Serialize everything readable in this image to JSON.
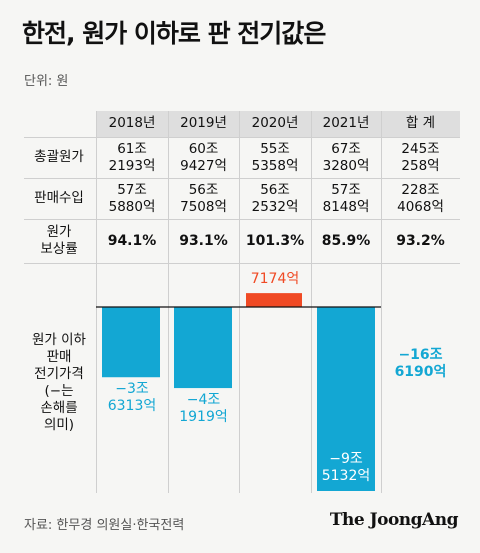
{
  "title": "한전, 원가 이하로 판 전기값은",
  "unit": "단위: 원",
  "header": [
    "2018년",
    "2019년",
    "2020년",
    "2021년",
    "합 계"
  ],
  "rows": [
    {
      "label": "총괄원가",
      "values": [
        [
          "61조",
          "2193억"
        ],
        [
          "60조",
          "9427억"
        ],
        [
          "55조",
          "5358억"
        ],
        [
          "67조",
          "3280억"
        ],
        [
          "245조",
          "258억"
        ]
      ]
    },
    {
      "label": "판매수입",
      "values": [
        [
          "57조",
          "5880억"
        ],
        [
          "56조",
          "7508억"
        ],
        [
          "56조",
          "2532억"
        ],
        [
          "57조",
          "8148억"
        ],
        [
          "228조",
          "4068억"
        ]
      ]
    },
    {
      "label_lines": [
        "원가",
        "보상률"
      ],
      "values": [
        "94.1%",
        "93.1%",
        "101.3%",
        "85.9%",
        "93.2%"
      ]
    }
  ],
  "chart_label_lines": [
    "원가 이하",
    "판매",
    "전기가격",
    "(−는",
    "손해를",
    "의미)"
  ],
  "chart_data": {
    "type": "bar",
    "categories": [
      "2018년",
      "2019년",
      "2020년",
      "2021년",
      "합 계"
    ],
    "values": [
      -36313,
      -41919,
      7174,
      -95132,
      -166190
    ],
    "value_unit": "억원",
    "labels": [
      [
        "−3조",
        "6313억"
      ],
      [
        "−4조",
        "1919억"
      ],
      [
        "7174억"
      ],
      [
        "−9조",
        "5132억"
      ],
      [
        "−16조",
        "6190억"
      ]
    ],
    "drawn": [
      true,
      true,
      true,
      true,
      false
    ],
    "colors": {
      "negative": "#13a7d3",
      "positive": "#f04a24"
    }
  },
  "source": "자료: 한무경 의원실·한국전력",
  "brand": "The JoongAng"
}
